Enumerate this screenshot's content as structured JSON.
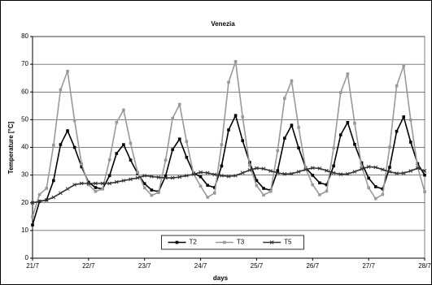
{
  "chart_data": {
    "type": "line",
    "title": "Venezia",
    "x_label": "days",
    "y_label": "Temperature [°C]",
    "xlim": [
      0,
      7
    ],
    "xticks": [
      {
        "value": 0,
        "label": "21/7"
      },
      {
        "value": 1,
        "label": "22/7"
      },
      {
        "value": 2,
        "label": "23/7"
      },
      {
        "value": 3,
        "label": "24/7"
      },
      {
        "value": 4,
        "label": "25/7"
      },
      {
        "value": 5,
        "label": "26/7"
      },
      {
        "value": 6,
        "label": "27/7"
      },
      {
        "value": 7,
        "label": "28/7"
      }
    ],
    "ylim": [
      0,
      80
    ],
    "yticks": [
      0,
      10,
      20,
      30,
      40,
      50,
      60,
      70,
      80
    ],
    "grid": true,
    "legend": "bottom",
    "x": [
      0,
      0.125,
      0.25,
      0.375,
      0.5,
      0.625,
      0.75,
      0.875,
      1,
      1.125,
      1.25,
      1.375,
      1.5,
      1.625,
      1.75,
      1.875,
      2,
      2.125,
      2.25,
      2.375,
      2.5,
      2.625,
      2.75,
      2.875,
      3,
      3.125,
      3.25,
      3.375,
      3.5,
      3.625,
      3.75,
      3.875,
      4,
      4.125,
      4.25,
      4.375,
      4.5,
      4.625,
      4.75,
      4.875,
      5,
      5.125,
      5.25,
      5.375,
      5.5,
      5.625,
      5.75,
      5.875,
      6,
      6.125,
      6.25,
      6.375,
      6.5,
      6.625,
      6.75,
      6.875,
      7
    ],
    "series": [
      {
        "name": "T2",
        "color": "#000000",
        "marker": "square",
        "values": [
          12,
          20.5,
          21,
          28,
          41,
          46,
          40,
          33,
          27.4,
          25.5,
          25,
          29.8,
          37.8,
          41,
          35.4,
          30.6,
          26.9,
          24.6,
          24,
          29.7,
          39.2,
          43,
          36.4,
          30.7,
          29.4,
          26.3,
          25.5,
          33.3,
          46.3,
          51.5,
          42.4,
          34.6,
          28,
          25.2,
          24.5,
          31.6,
          43.3,
          48,
          39.8,
          32.7,
          29.9,
          27.2,
          26.5,
          33.3,
          44.5,
          49,
          41.1,
          34.4,
          28.9,
          25.8,
          25,
          32.8,
          45.8,
          51,
          41.9,
          34.1,
          30
        ]
      },
      {
        "name": "T3",
        "color": "#999999",
        "marker": "square",
        "values": [
          15,
          23,
          25.2,
          40.8,
          60.8,
          67.5,
          49.7,
          34.1,
          26.5,
          24.1,
          25,
          35.5,
          49,
          53.5,
          41.5,
          31,
          25.4,
          22.7,
          23.7,
          35.4,
          50.5,
          55.5,
          42.1,
          30.4,
          26,
          22,
          23.5,
          41,
          63.5,
          71,
          51,
          33.5,
          26.2,
          22.8,
          24.1,
          38.8,
          57.7,
          64,
          47.2,
          32.5,
          26.5,
          22.9,
          24.2,
          39.8,
          59.8,
          66.5,
          48.7,
          33.1,
          25.4,
          21.5,
          23,
          40.1,
          62.2,
          69.5,
          49.9,
          32.8,
          24
        ]
      },
      {
        "name": "T5",
        "color": "#333333",
        "marker": "x",
        "values": [
          20,
          20.5,
          21,
          22,
          23.5,
          25,
          26.5,
          27,
          27,
          27,
          27,
          27,
          27.5,
          28,
          28.5,
          29,
          29.8,
          29.5,
          29.2,
          29,
          29,
          29.3,
          29.8,
          30.3,
          31,
          30.8,
          30.2,
          29.8,
          29.5,
          29.8,
          30.8,
          31.8,
          32.5,
          32.3,
          31.5,
          30.8,
          30.4,
          30.5,
          31.2,
          32,
          32.6,
          32.4,
          31.6,
          30.8,
          30.3,
          30.4,
          31.2,
          32.2,
          33,
          32.8,
          32,
          31.2,
          30.6,
          30.7,
          31.5,
          32.5,
          31.5
        ]
      }
    ]
  }
}
